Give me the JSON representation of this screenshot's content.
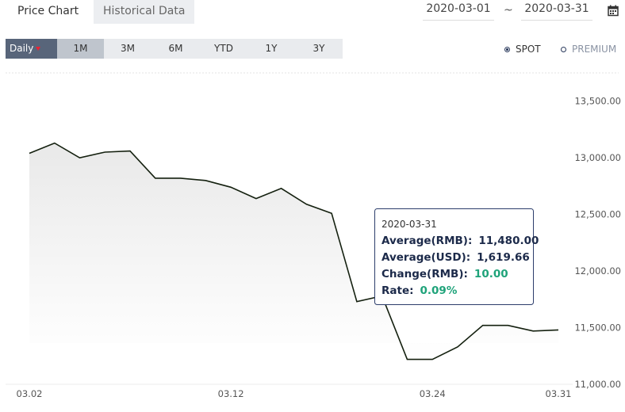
{
  "tabs": [
    "Price Chart",
    "Historical Data"
  ],
  "active_tab": 0,
  "date_range": {
    "start": "2020-03-01",
    "separator": "~",
    "end": "2020-03-31"
  },
  "range_buttons": [
    "Daily",
    "1M",
    "3M",
    "6M",
    "YTD",
    "1Y",
    "3Y"
  ],
  "selected_range": 1,
  "price_types": [
    "SPOT",
    "PREMIUM"
  ],
  "selected_price_type": 0,
  "chart_data": {
    "type": "line",
    "color": "#14200f",
    "categories": [
      "03.02",
      null,
      null,
      null,
      null,
      null,
      null,
      null,
      "03.12",
      null,
      null,
      null,
      null,
      null,
      null,
      null,
      "03.24",
      null,
      null,
      null,
      null,
      "03.31"
    ],
    "values": [
      13040,
      13130,
      13000,
      13050,
      13060,
      12820,
      12820,
      12800,
      12740,
      12640,
      12730,
      12590,
      12510,
      11730,
      11780,
      11220,
      11220,
      11330,
      11520,
      11520,
      11470,
      11480
    ],
    "ylim": [
      11000,
      13750
    ],
    "yticks": [
      {
        "value": 11000,
        "label": "11,000.00"
      },
      {
        "value": 11500,
        "label": "11,500.00"
      },
      {
        "value": 12000,
        "label": "12,000.00"
      },
      {
        "value": 12500,
        "label": "12,500.00"
      },
      {
        "value": 13000,
        "label": "13,000.00"
      },
      {
        "value": 13500,
        "label": "13,500.00"
      }
    ],
    "tooltip": {
      "date": "2020-03-31",
      "rows": [
        {
          "label": "Average(RMB):",
          "value": "11,480.00"
        },
        {
          "label": "Average(USD):",
          "value": "1,619.66"
        },
        {
          "label": "Change(RMB):",
          "value": "10.00",
          "color": "#1fa37a"
        },
        {
          "label": "Rate:",
          "value": "0.09%",
          "color": "#1fa37a"
        }
      ]
    }
  }
}
